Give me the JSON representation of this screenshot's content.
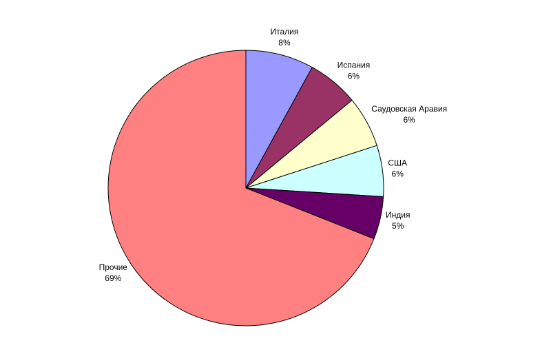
{
  "chart_data": {
    "type": "pie",
    "categories": [
      "Италия",
      "Испания",
      "Саудовская Аравия",
      "США",
      "Индия",
      "Прочие"
    ],
    "values": [
      8,
      6,
      6,
      6,
      5,
      69
    ],
    "value_labels": [
      "8%",
      "6%",
      "6%",
      "6%",
      "5%",
      "69%"
    ],
    "colors": [
      "#9999ff",
      "#993366",
      "#ffffcc",
      "#ccffff",
      "#660066",
      "#ff8080"
    ]
  }
}
